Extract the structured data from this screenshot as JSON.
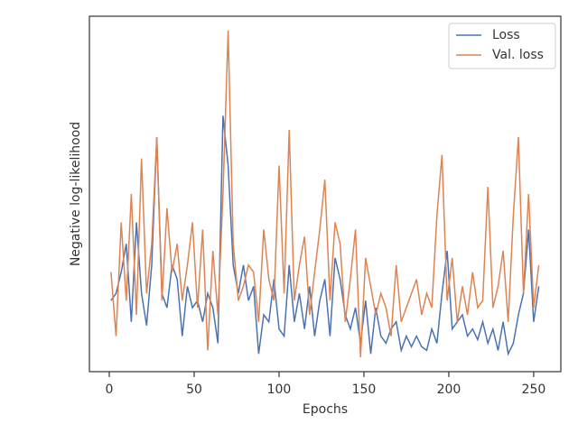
{
  "chart_data": {
    "type": "line",
    "xlabel": "Epochs",
    "ylabel": "Negative log-likelihood",
    "x": [
      1,
      4,
      7,
      10,
      13,
      16,
      19,
      22,
      25,
      28,
      31,
      34,
      37,
      40,
      43,
      46,
      49,
      52,
      55,
      58,
      61,
      64,
      67,
      70,
      73,
      76,
      79,
      82,
      85,
      88,
      91,
      94,
      97,
      100,
      103,
      106,
      109,
      112,
      115,
      118,
      121,
      124,
      127,
      130,
      133,
      136,
      139,
      142,
      145,
      148,
      151,
      154,
      157,
      160,
      163,
      166,
      169,
      172,
      175,
      178,
      181,
      184,
      187,
      190,
      193,
      196,
      199,
      202,
      205,
      208,
      211,
      214,
      217,
      220,
      223,
      226,
      229,
      232,
      235,
      238,
      241,
      244,
      247,
      250,
      253
    ],
    "series": [
      {
        "name": "Loss",
        "color": "#4c72b0",
        "values": [
          20,
          22,
          28,
          36,
          14,
          42,
          22,
          13,
          30,
          66,
          22,
          18,
          30,
          26,
          10,
          24,
          18,
          20,
          14,
          22,
          18,
          8,
          72,
          58,
          30,
          22,
          30,
          20,
          24,
          5,
          16,
          14,
          26,
          12,
          10,
          30,
          14,
          22,
          12,
          24,
          10,
          20,
          26,
          10,
          32,
          26,
          16,
          12,
          18,
          8,
          20,
          5,
          18,
          10,
          8,
          12,
          14,
          6,
          10,
          7,
          10,
          7,
          6,
          12,
          8,
          22,
          34,
          12,
          14,
          16,
          10,
          12,
          9,
          14,
          8,
          12,
          6,
          14,
          5,
          8,
          16,
          22,
          40,
          14,
          24
        ]
      },
      {
        "name": "Val. loss",
        "color": "#dd8452",
        "values": [
          28,
          10,
          42,
          20,
          50,
          16,
          60,
          22,
          36,
          66,
          20,
          46,
          28,
          36,
          20,
          30,
          42,
          18,
          40,
          6,
          34,
          16,
          50,
          96,
          36,
          20,
          24,
          30,
          28,
          14,
          40,
          26,
          20,
          58,
          22,
          68,
          20,
          30,
          38,
          16,
          28,
          40,
          54,
          20,
          42,
          36,
          14,
          26,
          40,
          4,
          32,
          24,
          16,
          22,
          18,
          10,
          30,
          14,
          18,
          22,
          26,
          16,
          22,
          18,
          44,
          61,
          20,
          32,
          14,
          24,
          16,
          28,
          18,
          20,
          52,
          18,
          24,
          34,
          14,
          44,
          66,
          22,
          50,
          18,
          30
        ]
      }
    ],
    "xlim": [
      -11.7,
      266
    ],
    "xticks": [
      0,
      50,
      100,
      150,
      200,
      250
    ],
    "ylim": [
      0,
      100
    ],
    "legend": "upper right"
  }
}
